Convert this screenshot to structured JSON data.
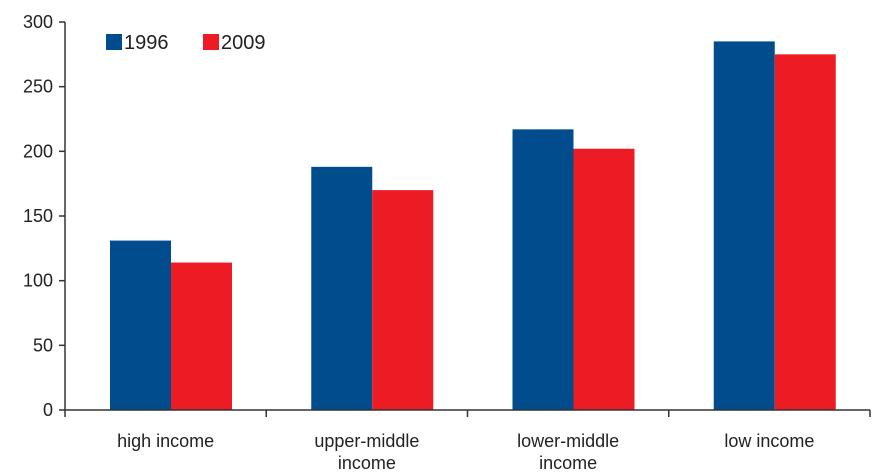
{
  "chart_data": {
    "type": "bar",
    "categories": [
      [
        "high income"
      ],
      [
        "upper-middle",
        "income"
      ],
      [
        "lower-middle",
        "income"
      ],
      [
        "low income"
      ]
    ],
    "series": [
      {
        "name": "1996",
        "color": "#004c8c",
        "values": [
          131,
          188,
          217,
          285
        ]
      },
      {
        "name": "2009",
        "color": "#ed1c24",
        "values": [
          114,
          170,
          202,
          275
        ]
      }
    ],
    "y_ticks": [
      "0",
      "50",
      "100",
      "150",
      "200",
      "250",
      "300"
    ],
    "ylim": [
      0,
      300
    ],
    "grid": false,
    "legend_position": "top-left"
  }
}
